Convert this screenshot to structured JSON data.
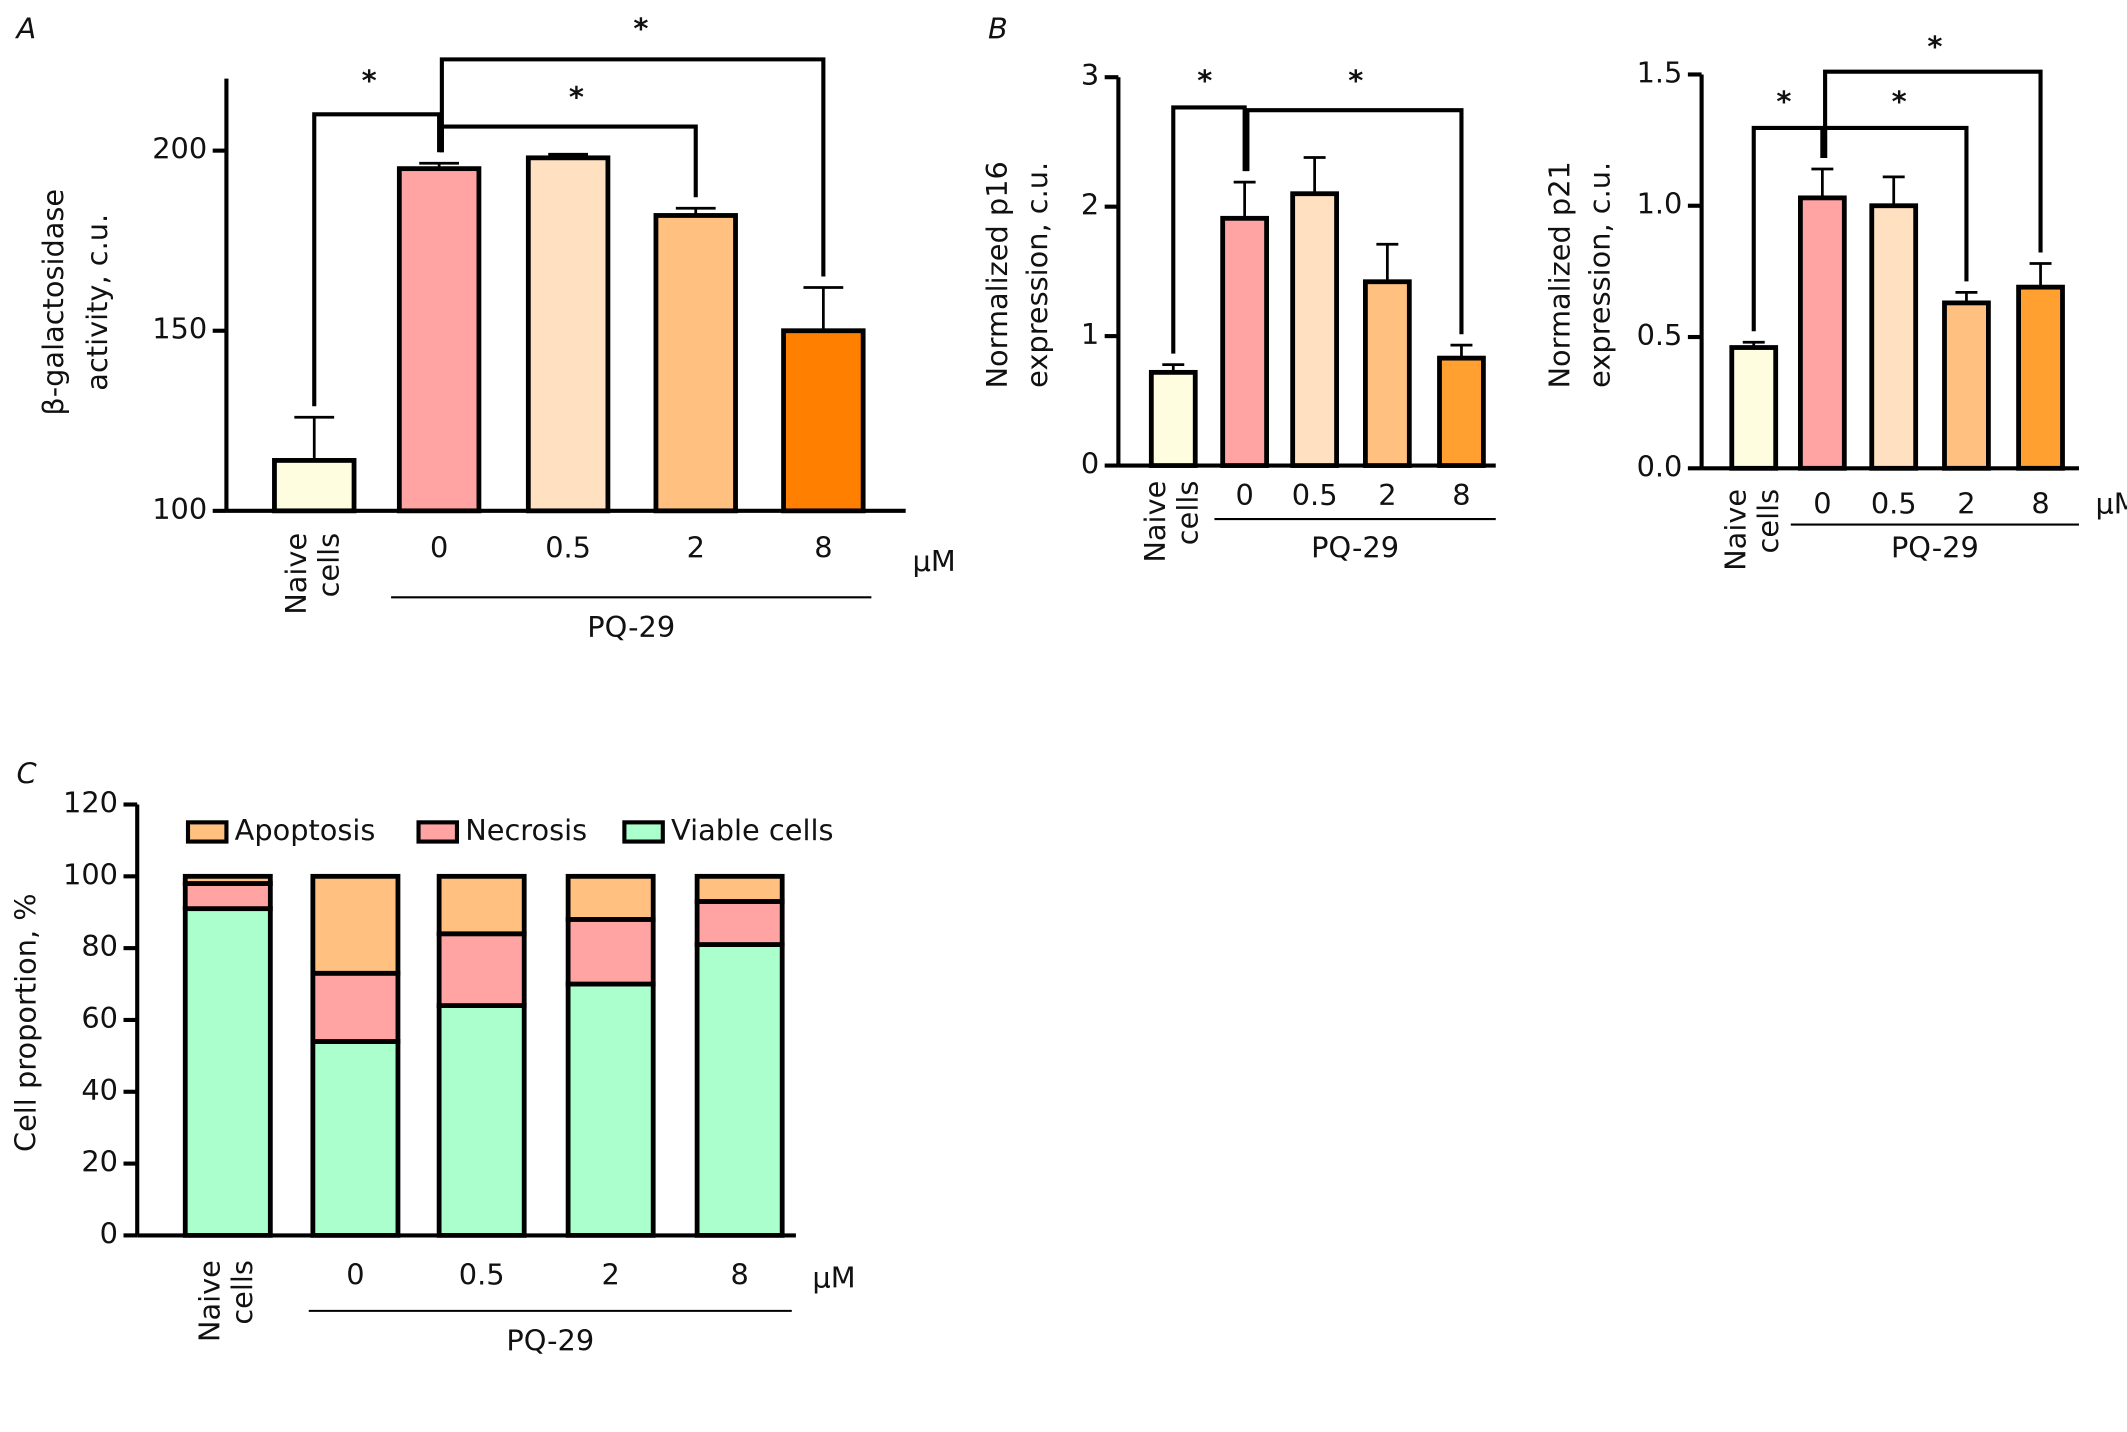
{
  "chart_data": [
    {
      "type": "bar",
      "panel": "A",
      "ylabel": [
        "β-galactosidase",
        "activity, c.u."
      ],
      "categories": [
        "Naive cells",
        "0",
        "0.5",
        "2",
        "8"
      ],
      "values": [
        114,
        195,
        198,
        182,
        150
      ],
      "errors": [
        12,
        1.5,
        1,
        2,
        12
      ],
      "colors": [
        "#fffde0",
        "#ffa3a3",
        "#ffe0c0",
        "#ffc080",
        "#ff8000"
      ],
      "ylim": [
        100,
        220
      ],
      "yticks": [
        100,
        150,
        200
      ],
      "unit": "μM",
      "group_label": "PQ-29",
      "significance_labels": [
        "*",
        "*",
        "*"
      ]
    },
    {
      "type": "bar",
      "panel": "B",
      "ylabel": [
        "Normalized p16",
        "expression, c.u."
      ],
      "categories": [
        "Naive cells",
        "0",
        "0.5",
        "2",
        "8"
      ],
      "values": [
        0.72,
        1.91,
        2.1,
        1.42,
        0.83
      ],
      "errors": [
        0.06,
        0.28,
        0.28,
        0.29,
        0.1
      ],
      "colors": [
        "#fffde0",
        "#ffa3a3",
        "#ffe0c0",
        "#ffc080",
        "#ffa030"
      ],
      "ylim": [
        0,
        3
      ],
      "yticks": [
        0,
        1,
        2,
        3
      ],
      "group_label": "PQ-29",
      "significance_labels": [
        "*",
        "*"
      ]
    },
    {
      "type": "bar",
      "ylabel": [
        "Normalized p21",
        "expression, c.u."
      ],
      "categories": [
        "Naive cells",
        "0",
        "0.5",
        "2",
        "8"
      ],
      "values": [
        0.46,
        1.03,
        1.0,
        0.63,
        0.69
      ],
      "errors": [
        0.02,
        0.11,
        0.11,
        0.04,
        0.09
      ],
      "colors": [
        "#fffde0",
        "#ffa3a3",
        "#ffe0c0",
        "#ffc080",
        "#ffa030"
      ],
      "ylim": [
        0,
        1.5
      ],
      "yticks": [
        {
          "value": 0,
          "label": "0.0"
        },
        0.5,
        {
          "value": 1,
          "label": "1.0"
        },
        1.5
      ],
      "unit": "μM",
      "group_label": "PQ-29",
      "significance_labels": [
        "*",
        "*",
        "*"
      ]
    },
    {
      "type": "stacked_bar",
      "panel": "C",
      "ylabel": [
        "Cell proportion, %"
      ],
      "categories": [
        "Naive cells",
        "0",
        "0.5",
        "2",
        "8"
      ],
      "series": [
        {
          "name": "Viable cells",
          "color": "#aaffcc",
          "values": [
            91,
            54,
            64,
            70,
            81
          ]
        },
        {
          "name": "Necrosis",
          "color": "#ffa3a3",
          "values": [
            7,
            19,
            20,
            18,
            12
          ]
        },
        {
          "name": "Apoptosis",
          "color": "#ffc080",
          "values": [
            2,
            27,
            16,
            12,
            7
          ]
        }
      ],
      "ylim": [
        0,
        120
      ],
      "yticks": [
        0,
        20,
        40,
        60,
        80,
        100,
        120
      ],
      "unit": "μM",
      "group_label": "PQ-29"
    }
  ]
}
